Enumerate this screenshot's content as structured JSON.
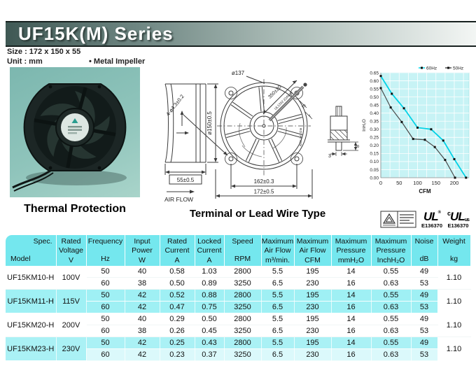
{
  "header": {
    "title": "UF15K(M) Series",
    "size_line": "Size : 172 x 150 x 55",
    "unit_line": "Unit : mm",
    "impeller_note": "• Metal Impeller"
  },
  "photo": {
    "caption": "Thermal Protection"
  },
  "drawing": {
    "caption": "Terminal or Lead Wire Type",
    "airflow_label": "AIR FLOW",
    "side_depth": "55±0.5",
    "side_diameter": "ø150±0.5",
    "front_inner_diameter": "ø137",
    "mounting_holes": "4-ø4.3±0.2",
    "hole_pitch": "162±0.3",
    "frame_size": "172±0.5",
    "lead_length": "350±20",
    "lead_wire_spec": "UL1332 22AWG",
    "rotation_label": "ROTATION",
    "dim_20": "20",
    "dim_7": "7",
    "terminal_dim_3": "3",
    "terminal_dim_8": "8"
  },
  "certifications": {
    "ul_text": "UL",
    "ul_reg_mark": "®",
    "cul_prefix": "c",
    "cul_suffix": "us",
    "ul_file_number": "E136370",
    "cul_file_number": "E136370"
  },
  "chart_data": {
    "type": "line",
    "title": "",
    "xlabel": "CFM",
    "ylabel": "InH₂O",
    "xlim": [
      0,
      240
    ],
    "ylim": [
      0,
      0.65
    ],
    "x_ticks": [
      0,
      50,
      100,
      150,
      200
    ],
    "y_tick_step": 0.05,
    "grid": true,
    "legend_position": "top-right",
    "marker_color": "#111111",
    "plot_bg": "#c7f3f5",
    "series": [
      {
        "name": "60Hz",
        "color": "#00d2e6",
        "points": [
          [
            0,
            0.63
          ],
          [
            30,
            0.52
          ],
          [
            63,
            0.43
          ],
          [
            100,
            0.31
          ],
          [
            137,
            0.3
          ],
          [
            170,
            0.23
          ],
          [
            200,
            0.115
          ],
          [
            232,
            0.0
          ]
        ]
      },
      {
        "name": "50Hz",
        "color": "#4a4a4a",
        "points": [
          [
            0,
            0.555
          ],
          [
            27,
            0.435
          ],
          [
            57,
            0.345
          ],
          [
            88,
            0.24
          ],
          [
            120,
            0.235
          ],
          [
            147,
            0.19
          ],
          [
            175,
            0.11
          ],
          [
            202,
            0.0
          ]
        ]
      }
    ]
  },
  "table": {
    "corner": {
      "top_label": "Spec.",
      "bottom_label": "Model"
    },
    "columns": [
      {
        "lines": [
          "Rated",
          "Voltage"
        ],
        "unit": "V"
      },
      {
        "lines": [
          "Frequency",
          ""
        ],
        "unit": "Hz"
      },
      {
        "lines": [
          "Input",
          "Power"
        ],
        "unit": "W"
      },
      {
        "lines": [
          "Rated",
          "Current"
        ],
        "unit": "A"
      },
      {
        "lines": [
          "Locked",
          "Current"
        ],
        "unit": "A"
      },
      {
        "lines": [
          "Speed",
          ""
        ],
        "unit": "RPM"
      },
      {
        "lines": [
          "Maximum",
          "Air Flow"
        ],
        "unit": "m³/min."
      },
      {
        "lines": [
          "Maximum",
          "Air Flow"
        ],
        "unit": "CFM"
      },
      {
        "lines": [
          "Maximum",
          "Pressure"
        ],
        "unit": "mmH₂O"
      },
      {
        "lines": [
          "Maximum",
          "Pressure"
        ],
        "unit": "InchH₂O"
      },
      {
        "lines": [
          "Noise",
          ""
        ],
        "unit": "dB"
      },
      {
        "lines": [
          "Weight",
          ""
        ],
        "unit": "kg"
      }
    ],
    "rows": [
      {
        "model": "UF15KM10-H",
        "voltage": "100V",
        "weight": "1.10",
        "sub_rows": [
          [
            "50",
            "40",
            "0.58",
            "1.03",
            "2800",
            "5.5",
            "195",
            "14",
            "0.55",
            "49"
          ],
          [
            "60",
            "38",
            "0.50",
            "0.89",
            "3250",
            "6.5",
            "230",
            "16",
            "0.63",
            "53"
          ]
        ]
      },
      {
        "model": "UF15KM11-H",
        "voltage": "115V",
        "weight": "1.10",
        "sub_rows": [
          [
            "50",
            "42",
            "0.52",
            "0.88",
            "2800",
            "5.5",
            "195",
            "14",
            "0.55",
            "49"
          ],
          [
            "60",
            "42",
            "0.47",
            "0.75",
            "3250",
            "6.5",
            "230",
            "16",
            "0.63",
            "53"
          ]
        ]
      },
      {
        "model": "UF15KM20-H",
        "voltage": "200V",
        "weight": "1.10",
        "sub_rows": [
          [
            "50",
            "40",
            "0.29",
            "0.50",
            "2800",
            "5.5",
            "195",
            "14",
            "0.55",
            "49"
          ],
          [
            "60",
            "38",
            "0.26",
            "0.45",
            "3250",
            "6.5",
            "230",
            "16",
            "0.63",
            "53"
          ]
        ]
      },
      {
        "model": "UF15KM23-H",
        "voltage": "230V",
        "weight": "1.10",
        "sub_rows": [
          [
            "50",
            "42",
            "0.25",
            "0.43",
            "2800",
            "5.5",
            "195",
            "14",
            "0.55",
            "49"
          ],
          [
            "60",
            "42",
            "0.23",
            "0.37",
            "3250",
            "6.5",
            "230",
            "16",
            "0.63",
            "53"
          ]
        ]
      }
    ]
  }
}
